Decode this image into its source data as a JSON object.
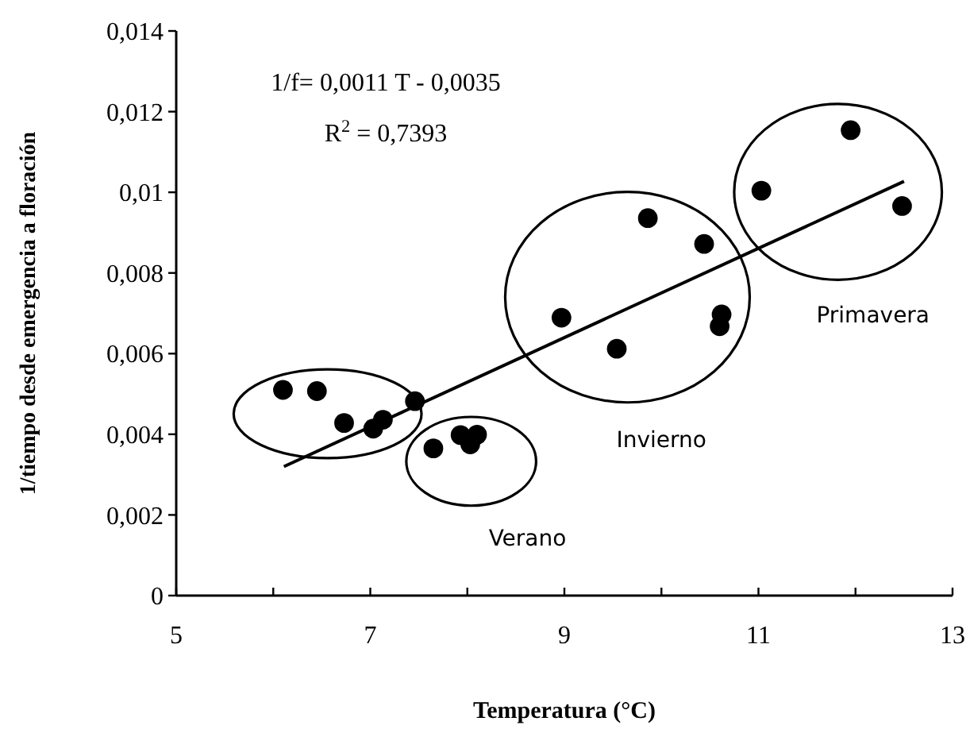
{
  "chart_data": {
    "type": "scatter",
    "xlabel": "Temperatura (°C)",
    "ylabel": "1/tiempo desde emergencia a floración",
    "xlim": [
      5,
      13
    ],
    "xticks": [
      5,
      {
        "value": 6,
        "label": null
      },
      7,
      {
        "value": 8,
        "label": null
      },
      9,
      {
        "value": 10,
        "label": null
      },
      11,
      {
        "value": 12,
        "label": null
      },
      13
    ],
    "ylim": [
      0,
      0.014
    ],
    "yticks": [
      {
        "value": 0,
        "label": "0"
      },
      {
        "value": 0.002,
        "label": "0,002"
      },
      {
        "value": 0.004,
        "label": "0,004"
      },
      {
        "value": 0.006,
        "label": "0,006"
      },
      {
        "value": 0.008,
        "label": "0,008"
      },
      {
        "value": 0.01,
        "label": "0,01"
      },
      {
        "value": 0.012,
        "label": "0,012"
      },
      {
        "value": 0.014,
        "label": "0,014"
      }
    ],
    "grid": false,
    "series": [
      {
        "color": "#000000",
        "marker": "circle",
        "x": [
          6.1,
          6.45,
          6.73,
          7.03,
          7.13,
          7.46,
          7.65,
          7.93,
          8.03,
          8.1,
          8.97,
          9.54,
          9.86,
          10.44,
          10.6,
          10.62,
          11.03,
          11.95,
          12.48
        ],
        "values": [
          0.0051,
          0.00507,
          0.00428,
          0.00414,
          0.00436,
          0.00482,
          0.00365,
          0.00398,
          0.00375,
          0.00399,
          0.00689,
          0.00612,
          0.00936,
          0.00872,
          0.00668,
          0.00697,
          0.01004,
          0.01154,
          0.00966
        ]
      },
      {
        "type": "line",
        "color": "#000000",
        "line_style": "solid",
        "x": [
          6.11,
          12.5
        ],
        "values": [
          0.0032,
          0.01027
        ]
      }
    ],
    "annotations": [
      "1/f= 0,0011 T - 0,0035",
      "R$^{2}$ = 0,7393",
      "Verano",
      "Invierno",
      "Primavera"
    ]
  }
}
